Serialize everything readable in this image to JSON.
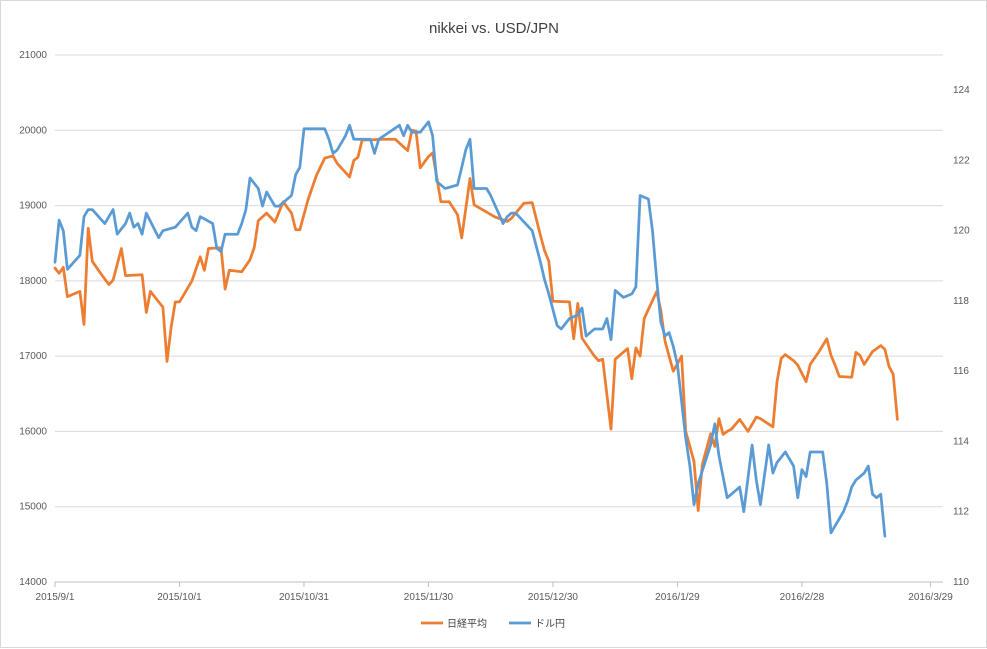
{
  "chart_data": {
    "type": "line",
    "title": "nikkei  vs. USD/JPN",
    "x_tick_labels": [
      "2015/9/1",
      "2015/10/1",
      "2015/10/31",
      "2015/11/30",
      "2015/12/30",
      "2016/1/29",
      "2016/2/28",
      "2016/3/29"
    ],
    "x_tick_days": [
      0,
      30,
      60,
      90,
      120,
      150,
      180,
      211
    ],
    "xlim_days": [
      0,
      214
    ],
    "y_left": {
      "ticks": [
        "14000",
        "15000",
        "16000",
        "17000",
        "18000",
        "19000",
        "20000",
        "21000"
      ],
      "ylim": [
        14000,
        21000
      ]
    },
    "y_right": {
      "ticks": [
        "110",
        "112",
        "114",
        "116",
        "118",
        "120",
        "122",
        "124"
      ],
      "ylim": [
        110,
        125
      ]
    },
    "grid": true,
    "legend_position": "bottom",
    "series": [
      {
        "name": "日経平均",
        "axis": "left",
        "color": "#ed7d31",
        "points": [
          [
            0,
            18170
          ],
          [
            1,
            18100
          ],
          [
            2,
            18180
          ],
          [
            3,
            17790
          ],
          [
            6,
            17860
          ],
          [
            7,
            17420
          ],
          [
            8,
            18700
          ],
          [
            9,
            18260
          ],
          [
            11,
            18100
          ],
          [
            13,
            17950
          ],
          [
            14,
            18010
          ],
          [
            16,
            18430
          ],
          [
            17,
            18070
          ],
          [
            21,
            18080
          ],
          [
            22,
            17580
          ],
          [
            23,
            17860
          ],
          [
            26,
            17650
          ],
          [
            27,
            16930
          ],
          [
            28,
            17390
          ],
          [
            29,
            17720
          ],
          [
            30,
            17720
          ],
          [
            33,
            18000
          ],
          [
            35,
            18320
          ],
          [
            36,
            18140
          ],
          [
            37,
            18430
          ],
          [
            40,
            18440
          ],
          [
            41,
            17890
          ],
          [
            42,
            18140
          ],
          [
            45,
            18120
          ],
          [
            47,
            18280
          ],
          [
            48,
            18440
          ],
          [
            49,
            18800
          ],
          [
            51,
            18900
          ],
          [
            53,
            18780
          ],
          [
            55,
            19050
          ],
          [
            57,
            18900
          ],
          [
            58,
            18680
          ],
          [
            59,
            18680
          ],
          [
            61,
            19080
          ],
          [
            63,
            19400
          ],
          [
            65,
            19630
          ],
          [
            67,
            19660
          ],
          [
            68,
            19560
          ],
          [
            71,
            19380
          ],
          [
            72,
            19600
          ],
          [
            73,
            19640
          ],
          [
            74,
            19870
          ],
          [
            79,
            19880
          ],
          [
            82,
            19880
          ],
          [
            85,
            19730
          ],
          [
            86,
            20000
          ],
          [
            87,
            19990
          ],
          [
            88,
            19500
          ],
          [
            90,
            19650
          ],
          [
            91,
            19700
          ],
          [
            93,
            19050
          ],
          [
            95,
            19050
          ],
          [
            97,
            18880
          ],
          [
            98,
            18570
          ],
          [
            100,
            19360
          ],
          [
            101,
            19010
          ],
          [
            106,
            18850
          ],
          [
            109,
            18790
          ],
          [
            110,
            18830
          ],
          [
            113,
            19030
          ],
          [
            115,
            19040
          ],
          [
            117,
            18600
          ],
          [
            118,
            18400
          ],
          [
            119,
            18260
          ],
          [
            120,
            17730
          ],
          [
            124,
            17720
          ],
          [
            125,
            17230
          ],
          [
            126,
            17700
          ],
          [
            127,
            17240
          ],
          [
            130,
            17000
          ],
          [
            131,
            16940
          ],
          [
            132,
            16960
          ],
          [
            134,
            16030
          ],
          [
            135,
            16960
          ],
          [
            138,
            17100
          ],
          [
            139,
            16700
          ],
          [
            140,
            17110
          ],
          [
            141,
            17000
          ],
          [
            142,
            17500
          ],
          [
            145,
            17860
          ],
          [
            146,
            17610
          ],
          [
            147,
            17200
          ],
          [
            148,
            17000
          ],
          [
            149,
            16800
          ],
          [
            151,
            17000
          ],
          [
            152,
            16000
          ],
          [
            154,
            15600
          ],
          [
            155,
            14950
          ],
          [
            156,
            15560
          ],
          [
            158,
            15970
          ],
          [
            159,
            15800
          ],
          [
            160,
            16170
          ],
          [
            161,
            15960
          ],
          [
            162,
            16000
          ],
          [
            163,
            16030
          ],
          [
            165,
            16160
          ],
          [
            167,
            16000
          ],
          [
            169,
            16190
          ],
          [
            170,
            16170
          ],
          [
            173,
            16060
          ],
          [
            174,
            16660
          ],
          [
            175,
            16970
          ],
          [
            176,
            17020
          ],
          [
            178,
            16940
          ],
          [
            179,
            16880
          ],
          [
            181,
            16660
          ],
          [
            182,
            16890
          ],
          [
            184,
            17050
          ],
          [
            186,
            17230
          ],
          [
            187,
            17010
          ],
          [
            188,
            16880
          ],
          [
            189,
            16730
          ],
          [
            192,
            16720
          ],
          [
            193,
            17050
          ],
          [
            194,
            17010
          ],
          [
            195,
            16890
          ],
          [
            197,
            17060
          ],
          [
            199,
            17140
          ],
          [
            200,
            17090
          ],
          [
            201,
            16860
          ],
          [
            202,
            16760
          ],
          [
            203,
            16160
          ]
        ]
      },
      {
        "name": "ドル円",
        "axis": "right",
        "color": "#5b9bd5",
        "points": [
          [
            0,
            119.1
          ],
          [
            1,
            120.3
          ],
          [
            2,
            120.0
          ],
          [
            3,
            118.9
          ],
          [
            6,
            119.3
          ],
          [
            7,
            120.4
          ],
          [
            8,
            120.6
          ],
          [
            9,
            120.6
          ],
          [
            12,
            120.2
          ],
          [
            14,
            120.6
          ],
          [
            15,
            119.9
          ],
          [
            17,
            120.2
          ],
          [
            18,
            120.5
          ],
          [
            19,
            120.1
          ],
          [
            20,
            120.2
          ],
          [
            21,
            119.9
          ],
          [
            22,
            120.5
          ],
          [
            25,
            119.8
          ],
          [
            26,
            120.0
          ],
          [
            29,
            120.1
          ],
          [
            32,
            120.5
          ],
          [
            33,
            120.1
          ],
          [
            34,
            120.0
          ],
          [
            35,
            120.4
          ],
          [
            38,
            120.2
          ],
          [
            39,
            119.5
          ],
          [
            40,
            119.4
          ],
          [
            41,
            119.9
          ],
          [
            44,
            119.9
          ],
          [
            45,
            120.2
          ],
          [
            46,
            120.6
          ],
          [
            47,
            121.5
          ],
          [
            49,
            121.2
          ],
          [
            50,
            120.7
          ],
          [
            51,
            121.1
          ],
          [
            53,
            120.7
          ],
          [
            54,
            120.7
          ],
          [
            55,
            120.8
          ],
          [
            57,
            121.0
          ],
          [
            58,
            121.6
          ],
          [
            59,
            121.8
          ],
          [
            60,
            122.9
          ],
          [
            65,
            122.9
          ],
          [
            66,
            122.6
          ],
          [
            67,
            122.2
          ],
          [
            68,
            122.3
          ],
          [
            70,
            122.7
          ],
          [
            71,
            123.0
          ],
          [
            72,
            122.6
          ],
          [
            76,
            122.6
          ],
          [
            77,
            122.2
          ],
          [
            78,
            122.6
          ],
          [
            83,
            123.0
          ],
          [
            84,
            122.7
          ],
          [
            85,
            123.0
          ],
          [
            86,
            122.8
          ],
          [
            88,
            122.8
          ],
          [
            90,
            123.1
          ],
          [
            91,
            122.7
          ],
          [
            92,
            121.4
          ],
          [
            94,
            121.2
          ],
          [
            97,
            121.3
          ],
          [
            98,
            121.8
          ],
          [
            99,
            122.3
          ],
          [
            100,
            122.6
          ],
          [
            101,
            121.2
          ],
          [
            104,
            121.2
          ],
          [
            105,
            121.0
          ],
          [
            108,
            120.2
          ],
          [
            109,
            120.4
          ],
          [
            110,
            120.5
          ],
          [
            111,
            120.5
          ],
          [
            115,
            120.0
          ],
          [
            117,
            119.1
          ],
          [
            118,
            118.6
          ],
          [
            119,
            118.2
          ],
          [
            121,
            117.3
          ],
          [
            122,
            117.2
          ],
          [
            124,
            117.5
          ],
          [
            126,
            117.6
          ],
          [
            127,
            117.8
          ],
          [
            128,
            117.0
          ],
          [
            130,
            117.2
          ],
          [
            132,
            117.2
          ],
          [
            133,
            117.5
          ],
          [
            134,
            116.9
          ],
          [
            135,
            118.3
          ],
          [
            137,
            118.1
          ],
          [
            139,
            118.2
          ],
          [
            140,
            118.4
          ],
          [
            141,
            121.0
          ],
          [
            143,
            120.9
          ],
          [
            144,
            120.0
          ],
          [
            145,
            118.6
          ],
          [
            146,
            117.4
          ],
          [
            147,
            117.0
          ],
          [
            148,
            117.1
          ],
          [
            149,
            116.7
          ],
          [
            150,
            116.2
          ],
          [
            152,
            114.1
          ],
          [
            153,
            113.3
          ],
          [
            154,
            112.2
          ],
          [
            155,
            112.8
          ],
          [
            158,
            113.9
          ],
          [
            159,
            114.5
          ],
          [
            160,
            113.6
          ],
          [
            162,
            112.4
          ],
          [
            165,
            112.7
          ],
          [
            166,
            112.0
          ],
          [
            168,
            113.9
          ],
          [
            169,
            112.9
          ],
          [
            170,
            112.2
          ],
          [
            172,
            113.9
          ],
          [
            173,
            113.1
          ],
          [
            174,
            113.4
          ],
          [
            176,
            113.7
          ],
          [
            177,
            113.5
          ],
          [
            178,
            113.3
          ],
          [
            179,
            112.4
          ],
          [
            180,
            113.2
          ],
          [
            181,
            113.0
          ],
          [
            182,
            113.7
          ],
          [
            185,
            113.7
          ],
          [
            186,
            112.8
          ],
          [
            187,
            111.4
          ],
          [
            188,
            111.6
          ],
          [
            189,
            111.8
          ],
          [
            190,
            112.0
          ],
          [
            191,
            112.3
          ],
          [
            192,
            112.7
          ],
          [
            193,
            112.9
          ],
          [
            195,
            113.1
          ],
          [
            196,
            113.3
          ],
          [
            197,
            112.5
          ],
          [
            198,
            112.4
          ],
          [
            199,
            112.5
          ],
          [
            200,
            111.3
          ]
        ]
      }
    ]
  }
}
